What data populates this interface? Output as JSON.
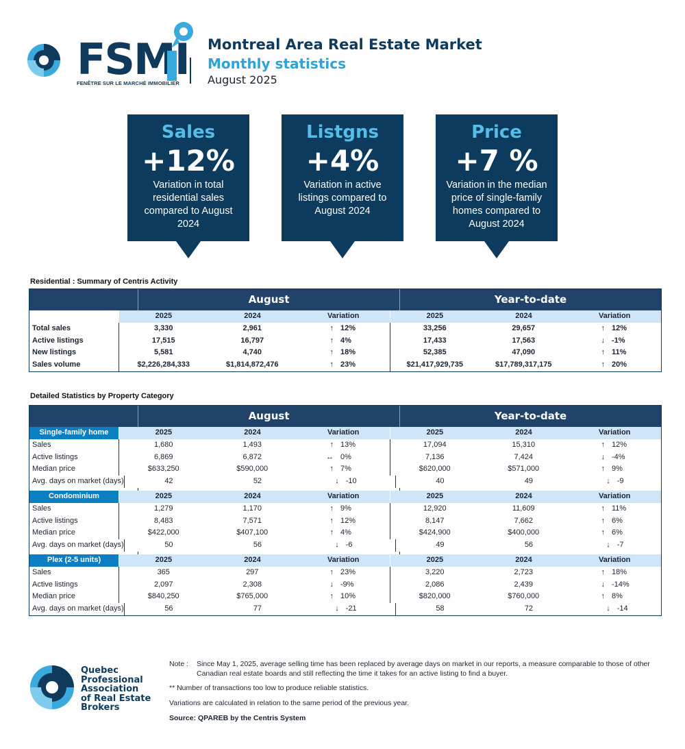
{
  "header": {
    "brand": "FSMI",
    "brand_tagline": "FENÊTRE SUR LE MARCHÉ IMMOBILIER",
    "title": "Montreal Area Real Estate Market",
    "subtitle": "Monthly statistics",
    "date": "August 2025"
  },
  "kpis": [
    {
      "title": "Sales",
      "value": "+12%",
      "desc": "Variation in total residential sales compared to August 2024"
    },
    {
      "title": "Listgns",
      "value": "+4%",
      "desc": "Variation in active listings compared to August 2024"
    },
    {
      "title": "Price",
      "value": "+7 %",
      "desc": "Variation in the median price of single-family homes compared to August 2024"
    }
  ],
  "summary": {
    "caption": "Residential : Summary of Centris Activity",
    "groups": [
      "August",
      "Year-to-date"
    ],
    "columns": [
      "2025",
      "2024",
      "Variation",
      "2025",
      "2024",
      "Variation"
    ],
    "rows": [
      {
        "label": "Total sales",
        "a25": "3,330",
        "a24": "2,961",
        "aarr": "↑",
        "avar": "12%",
        "y25": "33,256",
        "y24": "29,657",
        "yarr": "↑",
        "yvar": "12%"
      },
      {
        "label": "Active listings",
        "a25": "17,515",
        "a24": "16,797",
        "aarr": "↑",
        "avar": "4%",
        "y25": "17,433",
        "y24": "17,563",
        "yarr": "↓",
        "yvar": "-1%"
      },
      {
        "label": "New listings",
        "a25": "5,581",
        "a24": "4,740",
        "aarr": "↑",
        "avar": "18%",
        "y25": "52,385",
        "y24": "47,090",
        "yarr": "↑",
        "yvar": "11%"
      },
      {
        "label": "Sales volume",
        "a25": "$2,226,284,333",
        "a24": "$1,814,872,476",
        "aarr": "↑",
        "avar": "23%",
        "y25": "$21,417,929,735",
        "y24": "$17,789,317,175",
        "yarr": "↑",
        "yvar": "20%"
      }
    ]
  },
  "detail": {
    "caption": "Detailed Statistics by Property Category",
    "groups": [
      "August",
      "Year-to-date"
    ],
    "columns": [
      "2025",
      "2024",
      "Variation",
      "2025",
      "2024",
      "Variation"
    ],
    "categories": [
      {
        "name": "Single-family home",
        "rows": [
          {
            "label": "Sales",
            "a25": "1,680",
            "a24": "1,493",
            "aarr": "↑",
            "avar": "13%",
            "y25": "17,094",
            "y24": "15,310",
            "yarr": "↑",
            "yvar": "12%"
          },
          {
            "label": "Active listings",
            "a25": "6,869",
            "a24": "6,872",
            "aarr": "↔",
            "avar": "0%",
            "y25": "7,136",
            "y24": "7,424",
            "yarr": "↓",
            "yvar": "-4%"
          },
          {
            "label": "Median price",
            "a25": "$633,250",
            "a24": "$590,000",
            "aarr": "↑",
            "avar": "7%",
            "y25": "$620,000",
            "y24": "$571,000",
            "yarr": "↑",
            "yvar": "9%"
          },
          {
            "label": "Avg. days on market (days)",
            "a25": "42",
            "a24": "52",
            "aarr": "↓",
            "avar": "-10",
            "y25": "40",
            "y24": "49",
            "yarr": "↓",
            "yvar": "-9"
          }
        ]
      },
      {
        "name": "Condominium",
        "rows": [
          {
            "label": "Sales",
            "a25": "1,279",
            "a24": "1,170",
            "aarr": "↑",
            "avar": "9%",
            "y25": "12,920",
            "y24": "11,609",
            "yarr": "↑",
            "yvar": "11%"
          },
          {
            "label": "Active listings",
            "a25": "8,483",
            "a24": "7,571",
            "aarr": "↑",
            "avar": "12%",
            "y25": "8,147",
            "y24": "7,662",
            "yarr": "↑",
            "yvar": "6%"
          },
          {
            "label": "Median price",
            "a25": "$422,000",
            "a24": "$407,100",
            "aarr": "↑",
            "avar": "4%",
            "y25": "$424,900",
            "y24": "$400,000",
            "yarr": "↑",
            "yvar": "6%"
          },
          {
            "label": "Avg. days on market (days)",
            "a25": "50",
            "a24": "56",
            "aarr": "↓",
            "avar": "-6",
            "y25": "49",
            "y24": "56",
            "yarr": "↓",
            "yvar": "-7"
          }
        ]
      },
      {
        "name": "Plex (2-5 units)",
        "rows": [
          {
            "label": "Sales",
            "a25": "365",
            "a24": "297",
            "aarr": "↑",
            "avar": "23%",
            "y25": "3,220",
            "y24": "2,723",
            "yarr": "↑",
            "yvar": "18%"
          },
          {
            "label": "Active listings",
            "a25": "2,097",
            "a24": "2,308",
            "aarr": "↓",
            "avar": "-9%",
            "y25": "2,086",
            "y24": "2,439",
            "yarr": "↓",
            "yvar": "-14%"
          },
          {
            "label": "Median price",
            "a25": "$840,250",
            "a24": "$765,000",
            "aarr": "↑",
            "avar": "10%",
            "y25": "$820,000",
            "y24": "$760,000",
            "yarr": "↑",
            "yvar": "8%"
          },
          {
            "label": "Avg. days on market (days)",
            "a25": "56",
            "a24": "77",
            "aarr": "↓",
            "avar": "-21",
            "y25": "58",
            "y24": "72",
            "yarr": "↓",
            "yvar": "-14"
          }
        ]
      }
    ]
  },
  "footer": {
    "org_name": "Quebec\nProfessional\nAssociation\nof Real Estate\nBrokers",
    "note_label": "Note :",
    "note_text": "Since May 1, 2025, average selling time has been replaced by average days on market in our reports, a measure comparable to those of other Canadian real estate boards and still reflecting the time it takes for an active listing to find a buyer.",
    "note_stars": "**  Number of transactions too low to produce reliable statistics.",
    "note_variation": "Variations are calculated in relation to the same period of the previous year.",
    "source": "Source: QPAREB by the Centris System"
  },
  "colors": {
    "navy": "#0c3b5e",
    "accent": "#2ea3d6",
    "header_band": "#21436a",
    "column_band": "#cfe6f8",
    "category_band": "#0b7fc1"
  }
}
